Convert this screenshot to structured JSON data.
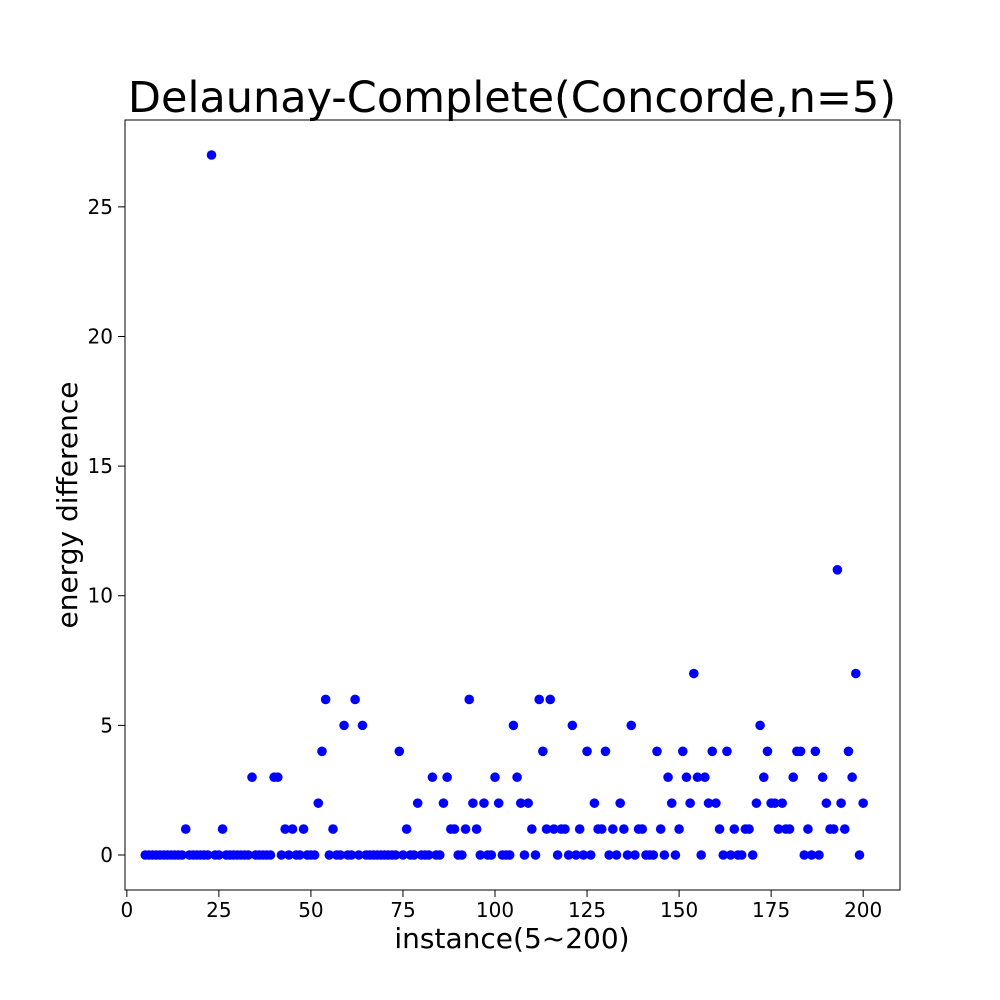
{
  "chart_data": {
    "type": "scatter",
    "title": "Delaunay-Complete(Concorde,n=5)",
    "xlabel": "instance(5~200)",
    "ylabel": "energy difference",
    "xlim": [
      -0.5,
      210
    ],
    "ylim": [
      -1.35,
      28.35
    ],
    "xticks": [
      0,
      25,
      50,
      75,
      100,
      125,
      150,
      175,
      200
    ],
    "yticks": [
      0,
      5,
      10,
      15,
      20,
      25
    ],
    "grid": false,
    "legend": "none",
    "series": [
      {
        "color": "#0000ff",
        "points": [
          [
            5,
            0
          ],
          [
            6,
            0
          ],
          [
            7,
            0
          ],
          [
            8,
            0
          ],
          [
            9,
            0
          ],
          [
            10,
            0
          ],
          [
            11,
            0
          ],
          [
            12,
            0
          ],
          [
            13,
            0
          ],
          [
            14,
            0
          ],
          [
            15,
            0
          ],
          [
            16,
            1
          ],
          [
            17,
            0
          ],
          [
            18,
            0
          ],
          [
            19,
            0
          ],
          [
            20,
            0
          ],
          [
            21,
            0
          ],
          [
            22,
            0
          ],
          [
            23,
            27
          ],
          [
            24,
            0
          ],
          [
            25,
            0
          ],
          [
            26,
            1
          ],
          [
            27,
            0
          ],
          [
            28,
            0
          ],
          [
            29,
            0
          ],
          [
            30,
            0
          ],
          [
            31,
            0
          ],
          [
            32,
            0
          ],
          [
            33,
            0
          ],
          [
            34,
            3
          ],
          [
            35,
            0
          ],
          [
            36,
            0
          ],
          [
            37,
            0
          ],
          [
            38,
            0
          ],
          [
            39,
            0
          ],
          [
            40,
            3
          ],
          [
            41,
            3
          ],
          [
            42,
            0
          ],
          [
            43,
            1
          ],
          [
            44,
            0
          ],
          [
            45,
            1
          ],
          [
            46,
            0
          ],
          [
            47,
            0
          ],
          [
            48,
            1
          ],
          [
            49,
            0
          ],
          [
            50,
            0
          ],
          [
            51,
            0
          ],
          [
            52,
            2
          ],
          [
            53,
            4
          ],
          [
            54,
            6
          ],
          [
            55,
            0
          ],
          [
            56,
            1
          ],
          [
            57,
            0
          ],
          [
            58,
            0
          ],
          [
            59,
            5
          ],
          [
            60,
            0
          ],
          [
            61,
            0
          ],
          [
            62,
            6
          ],
          [
            63,
            0
          ],
          [
            64,
            5
          ],
          [
            65,
            0
          ],
          [
            66,
            0
          ],
          [
            67,
            0
          ],
          [
            68,
            0
          ],
          [
            69,
            0
          ],
          [
            70,
            0
          ],
          [
            71,
            0
          ],
          [
            72,
            0
          ],
          [
            73,
            0
          ],
          [
            74,
            4
          ],
          [
            75,
            0
          ],
          [
            76,
            1
          ],
          [
            77,
            0
          ],
          [
            78,
            0
          ],
          [
            79,
            2
          ],
          [
            80,
            0
          ],
          [
            81,
            0
          ],
          [
            82,
            0
          ],
          [
            83,
            3
          ],
          [
            84,
            0
          ],
          [
            85,
            0
          ],
          [
            86,
            2
          ],
          [
            87,
            3
          ],
          [
            88,
            1
          ],
          [
            89,
            1
          ],
          [
            90,
            0
          ],
          [
            91,
            0
          ],
          [
            92,
            1
          ],
          [
            93,
            6
          ],
          [
            94,
            2
          ],
          [
            95,
            1
          ],
          [
            96,
            0
          ],
          [
            97,
            2
          ],
          [
            98,
            0
          ],
          [
            99,
            0
          ],
          [
            100,
            3
          ],
          [
            101,
            2
          ],
          [
            102,
            0
          ],
          [
            103,
            0
          ],
          [
            104,
            0
          ],
          [
            105,
            5
          ],
          [
            106,
            3
          ],
          [
            107,
            2
          ],
          [
            108,
            0
          ],
          [
            109,
            2
          ],
          [
            110,
            1
          ],
          [
            111,
            0
          ],
          [
            112,
            6
          ],
          [
            113,
            4
          ],
          [
            114,
            1
          ],
          [
            115,
            6
          ],
          [
            116,
            1
          ],
          [
            117,
            0
          ],
          [
            118,
            1
          ],
          [
            119,
            1
          ],
          [
            120,
            0
          ],
          [
            121,
            5
          ],
          [
            122,
            0
          ],
          [
            123,
            1
          ],
          [
            124,
            0
          ],
          [
            125,
            4
          ],
          [
            126,
            0
          ],
          [
            127,
            2
          ],
          [
            128,
            1
          ],
          [
            129,
            1
          ],
          [
            130,
            4
          ],
          [
            131,
            0
          ],
          [
            132,
            1
          ],
          [
            133,
            0
          ],
          [
            134,
            2
          ],
          [
            135,
            1
          ],
          [
            136,
            0
          ],
          [
            137,
            5
          ],
          [
            138,
            0
          ],
          [
            139,
            1
          ],
          [
            140,
            1
          ],
          [
            141,
            0
          ],
          [
            142,
            0
          ],
          [
            143,
            0
          ],
          [
            144,
            4
          ],
          [
            145,
            1
          ],
          [
            146,
            0
          ],
          [
            147,
            3
          ],
          [
            148,
            2
          ],
          [
            149,
            0
          ],
          [
            150,
            1
          ],
          [
            151,
            4
          ],
          [
            152,
            3
          ],
          [
            153,
            2
          ],
          [
            154,
            7
          ],
          [
            155,
            3
          ],
          [
            156,
            0
          ],
          [
            157,
            3
          ],
          [
            158,
            2
          ],
          [
            159,
            4
          ],
          [
            160,
            2
          ],
          [
            161,
            1
          ],
          [
            162,
            0
          ],
          [
            163,
            4
          ],
          [
            164,
            0
          ],
          [
            165,
            1
          ],
          [
            166,
            0
          ],
          [
            167,
            0
          ],
          [
            168,
            1
          ],
          [
            169,
            1
          ],
          [
            170,
            0
          ],
          [
            171,
            2
          ],
          [
            172,
            5
          ],
          [
            173,
            3
          ],
          [
            174,
            4
          ],
          [
            175,
            2
          ],
          [
            176,
            2
          ],
          [
            177,
            1
          ],
          [
            178,
            2
          ],
          [
            179,
            1
          ],
          [
            180,
            1
          ],
          [
            181,
            3
          ],
          [
            182,
            4
          ],
          [
            183,
            4
          ],
          [
            184,
            0
          ],
          [
            185,
            1
          ],
          [
            186,
            0
          ],
          [
            187,
            4
          ],
          [
            188,
            0
          ],
          [
            189,
            3
          ],
          [
            190,
            2
          ],
          [
            191,
            1
          ],
          [
            192,
            1
          ],
          [
            193,
            11
          ],
          [
            194,
            2
          ],
          [
            195,
            1
          ],
          [
            196,
            4
          ],
          [
            197,
            3
          ],
          [
            198,
            7
          ],
          [
            199,
            0
          ],
          [
            200,
            2
          ]
        ]
      }
    ]
  }
}
